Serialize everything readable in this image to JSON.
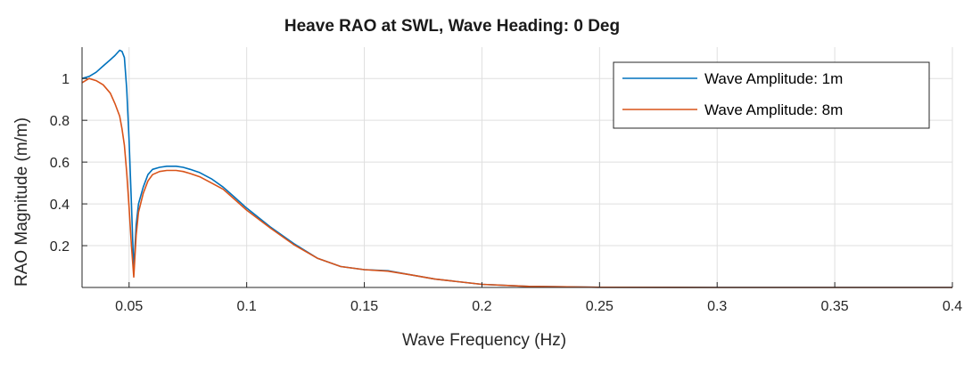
{
  "chart_data": {
    "type": "line",
    "title": "Heave RAO at SWL, Wave Heading: 0 Deg",
    "xlabel": "Wave Frequency (Hz)",
    "ylabel": "RAO Magnitude (m/m)",
    "xlim": [
      0.03,
      0.4
    ],
    "ylim": [
      0,
      1.15
    ],
    "xticks": [
      0.05,
      0.1,
      0.15,
      0.2,
      0.25,
      0.3,
      0.35,
      0.4
    ],
    "xtick_labels": [
      "0.05",
      "0.1",
      "0.15",
      "0.2",
      "0.25",
      "0.3",
      "0.35",
      "0.4"
    ],
    "yticks": [
      0.2,
      0.4,
      0.6,
      0.8,
      1
    ],
    "ytick_labels": [
      "0.2",
      "0.4",
      "0.6",
      "0.8",
      "1"
    ],
    "grid": true,
    "legend_position": "top-right",
    "series": [
      {
        "name": "Wave Amplitude: 1m",
        "color": "#0072BD",
        "x": [
          0.03,
          0.033,
          0.036,
          0.039,
          0.042,
          0.044,
          0.046,
          0.047,
          0.048,
          0.049,
          0.05,
          0.051,
          0.052,
          0.053,
          0.054,
          0.056,
          0.058,
          0.06,
          0.063,
          0.066,
          0.07,
          0.073,
          0.076,
          0.08,
          0.085,
          0.09,
          0.095,
          0.1,
          0.11,
          0.12,
          0.13,
          0.14,
          0.15,
          0.16,
          0.17,
          0.18,
          0.2,
          0.22,
          0.25,
          0.3,
          0.35,
          0.4
        ],
        "y": [
          1.0,
          1.01,
          1.03,
          1.06,
          1.09,
          1.11,
          1.135,
          1.13,
          1.1,
          0.95,
          0.7,
          0.4,
          0.08,
          0.3,
          0.4,
          0.48,
          0.54,
          0.565,
          0.575,
          0.58,
          0.58,
          0.575,
          0.565,
          0.55,
          0.52,
          0.48,
          0.43,
          0.38,
          0.29,
          0.21,
          0.14,
          0.1,
          0.085,
          0.08,
          0.06,
          0.04,
          0.015,
          0.005,
          0.001,
          0.0,
          0.0,
          0.0
        ]
      },
      {
        "name": "Wave Amplitude: 8m",
        "color": "#D95319",
        "x": [
          0.03,
          0.033,
          0.036,
          0.039,
          0.042,
          0.044,
          0.046,
          0.047,
          0.048,
          0.049,
          0.05,
          0.051,
          0.052,
          0.053,
          0.054,
          0.056,
          0.058,
          0.06,
          0.063,
          0.066,
          0.07,
          0.073,
          0.076,
          0.08,
          0.085,
          0.09,
          0.095,
          0.1,
          0.11,
          0.12,
          0.13,
          0.14,
          0.15,
          0.16,
          0.17,
          0.18,
          0.2,
          0.22,
          0.25,
          0.3,
          0.35,
          0.4
        ],
        "y": [
          0.98,
          1.0,
          0.99,
          0.97,
          0.93,
          0.88,
          0.82,
          0.76,
          0.68,
          0.55,
          0.38,
          0.2,
          0.05,
          0.25,
          0.36,
          0.45,
          0.51,
          0.54,
          0.555,
          0.56,
          0.56,
          0.555,
          0.545,
          0.53,
          0.5,
          0.47,
          0.42,
          0.37,
          0.285,
          0.205,
          0.14,
          0.1,
          0.085,
          0.078,
          0.06,
          0.04,
          0.015,
          0.005,
          0.001,
          0.0,
          0.0,
          0.0
        ]
      }
    ]
  }
}
